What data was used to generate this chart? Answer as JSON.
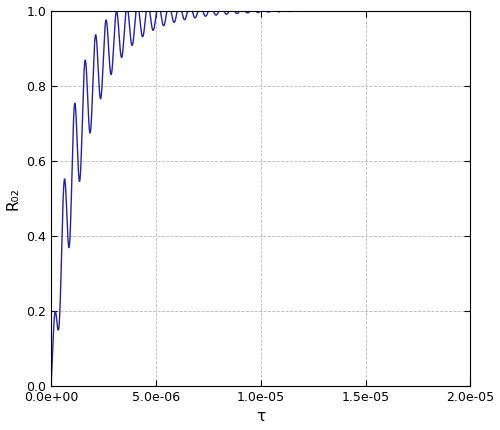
{
  "line_color": "#2222aa",
  "line_width": 1.0,
  "background_color": "#ffffff",
  "grid_color": "#999999",
  "grid_style": "--",
  "xlabel": "τ",
  "ylabel": "R₀₂",
  "xlim": [
    0,
    2e-05
  ],
  "ylim": [
    0.0,
    1.0
  ],
  "xticks": [
    0.0,
    5e-06,
    1e-05,
    1.5e-05,
    2e-05
  ],
  "yticks": [
    0.0,
    0.2,
    0.4,
    0.6,
    0.8,
    1.0
  ],
  "figsize": [
    5.0,
    4.3
  ],
  "dpi": 100,
  "xlabel_fontsize": 11,
  "ylabel_fontsize": 11,
  "tick_labelsize": 9
}
